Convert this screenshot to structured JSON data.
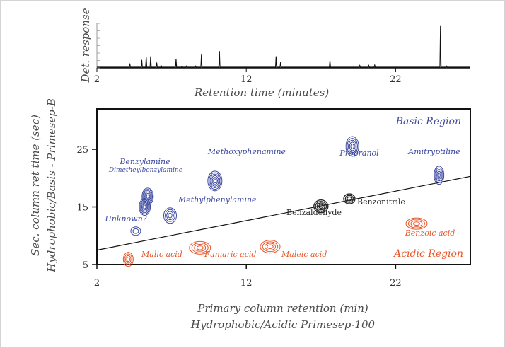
{
  "colors": {
    "basic": "#3d4aa0",
    "acidic": "#e8562a",
    "neutral": "#2a2a2a",
    "axis": "#111111"
  },
  "chart_data": [
    {
      "type": "line",
      "title": "",
      "xlabel": "Retention time (minutes)",
      "ylabel": "Det. response",
      "xlim": [
        2,
        27
      ],
      "ylim": [
        0,
        1
      ],
      "x_ticks": [
        "2",
        "12",
        "22"
      ],
      "peaks": [
        {
          "x": 4.2,
          "h": 0.1
        },
        {
          "x": 5.0,
          "h": 0.18
        },
        {
          "x": 5.3,
          "h": 0.24
        },
        {
          "x": 5.6,
          "h": 0.26
        },
        {
          "x": 6.0,
          "h": 0.12
        },
        {
          "x": 6.3,
          "h": 0.05
        },
        {
          "x": 7.3,
          "h": 0.19
        },
        {
          "x": 7.7,
          "h": 0.04
        },
        {
          "x": 8.0,
          "h": 0.04
        },
        {
          "x": 8.6,
          "h": 0.04
        },
        {
          "x": 9.0,
          "h": 0.3
        },
        {
          "x": 10.2,
          "h": 0.38
        },
        {
          "x": 14.0,
          "h": 0.26
        },
        {
          "x": 14.3,
          "h": 0.14
        },
        {
          "x": 17.6,
          "h": 0.16
        },
        {
          "x": 19.6,
          "h": 0.05
        },
        {
          "x": 20.2,
          "h": 0.05
        },
        {
          "x": 20.6,
          "h": 0.06
        },
        {
          "x": 25.0,
          "h": 0.94
        },
        {
          "x": 25.4,
          "h": 0.04
        }
      ]
    },
    {
      "type": "scatter",
      "title": "",
      "xlabel_line1": "Primary column retention (min)",
      "xlabel_line2": "Hydrophobic/Acidic Primesep-100",
      "ylabel_line1": "Sec. column ret time (sec)",
      "ylabel_line2": "Hydrophobic/Basis - Primesep-B",
      "xlim": [
        2,
        27
      ],
      "ylim": [
        5,
        32
      ],
      "x_ticks": [
        "2",
        "12",
        "22"
      ],
      "y_ticks": [
        "5",
        "15",
        "25"
      ],
      "regions": {
        "basic": "Basic Region",
        "acidic": "Acidic Region"
      },
      "trend_line": {
        "x": [
          2,
          27
        ],
        "y": [
          7.5,
          20.3
        ]
      },
      "compounds": [
        {
          "name": "Benzylamine",
          "x": 5.4,
          "y": 16.8,
          "group": "basic",
          "rings": 6
        },
        {
          "name": "Dimetheylbenzylamine",
          "x": 5.2,
          "y": 15.0,
          "group": "basic",
          "rings": 6
        },
        {
          "name": "Unknown?",
          "x": 4.6,
          "y": 10.8,
          "group": "basic",
          "rings": 2
        },
        {
          "name": "Methylphenylamine",
          "x": 6.9,
          "y": 13.5,
          "group": "basic",
          "rings": 4
        },
        {
          "name": "Methoxyphenamine",
          "x": 9.9,
          "y": 19.5,
          "group": "basic",
          "rings": 6
        },
        {
          "name": "Propranol",
          "x": 19.1,
          "y": 25.5,
          "group": "basic",
          "rings": 5
        },
        {
          "name": "Amitryptiline",
          "x": 24.9,
          "y": 20.5,
          "group": "basic",
          "rings": 5
        },
        {
          "name": "Benzaldehyde",
          "x": 17.0,
          "y": 15.1,
          "group": "neutral",
          "rings": 4
        },
        {
          "name": "Benzonitrile",
          "x": 18.9,
          "y": 16.4,
          "group": "neutral",
          "rings": 3
        },
        {
          "name": "Malic acid",
          "x": 4.1,
          "y": 5.9,
          "group": "acidic",
          "rings": 4
        },
        {
          "name": "Fumaric acid",
          "x": 8.9,
          "y": 7.9,
          "group": "acidic",
          "rings": 4
        },
        {
          "name": "Maleic acid",
          "x": 13.6,
          "y": 8.1,
          "group": "acidic",
          "rings": 4
        },
        {
          "name": "Benzoic acid",
          "x": 23.4,
          "y": 12.1,
          "group": "acidic",
          "rings": 4
        }
      ]
    }
  ]
}
